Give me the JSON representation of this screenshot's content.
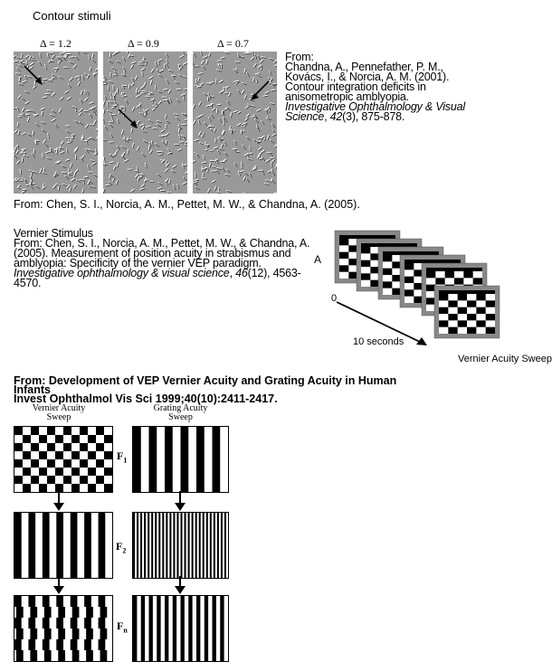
{
  "contour": {
    "title": "Contour stimuli",
    "deltas": [
      "Δ = 1.2",
      "Δ = 0.9",
      "Δ = 0.7"
    ],
    "citation_prefix": "From:",
    "citation_main": "Chandna, A., Pennefather, P. M., Kovács, I., & Norcia, A. M. (2001). Contour integration deficits in anisometropic amblyopia. ",
    "citation_journal": "Investigative Ophthalmology & Visual Science",
    "citation_comma": ", ",
    "citation_vol": "42",
    "citation_issue": "(3), 875-878.",
    "source_line": "From: Chen, S. I., Norcia, A. M., Pettet, M. W., & Chandna, A. (2005)."
  },
  "vernier": {
    "title": "Vernier  Stimulus",
    "citation_main": "From: Chen, S. I., Norcia, A. M., Pettet, M. W., & Chandna, A. (2005). Measurement of position acuity in strabismus and amblyopia: Specificity of the vernier VEP paradigm. ",
    "citation_journal": "Investigative ophthalmology & visual science",
    "citation_comma": ", ",
    "citation_vol": "46",
    "citation_issue": "(12), 4563-4570.",
    "figure_label": "A",
    "origin_label": "0",
    "time_label": "10 seconds",
    "sweep_label": "Vernier Acuity Sweep"
  },
  "development": {
    "title_line1": "From: Development of VEP Vernier Acuity and Grating Acuity in Human",
    "title_line2": "Infants",
    "title_line3": "Invest  Ophthalmol  Vis  Sci   1999;40(10):2411-2417.",
    "col1_label_a": "Vernier Acuity",
    "col1_label_b": "Sweep",
    "col2_label_a": "Grating Acuity",
    "col2_label_b": "Sweep",
    "f1": "F",
    "f1_sub": "1",
    "f2": "F",
    "f2_sub": "2",
    "fn": "F",
    "fn_sub": "n"
  }
}
